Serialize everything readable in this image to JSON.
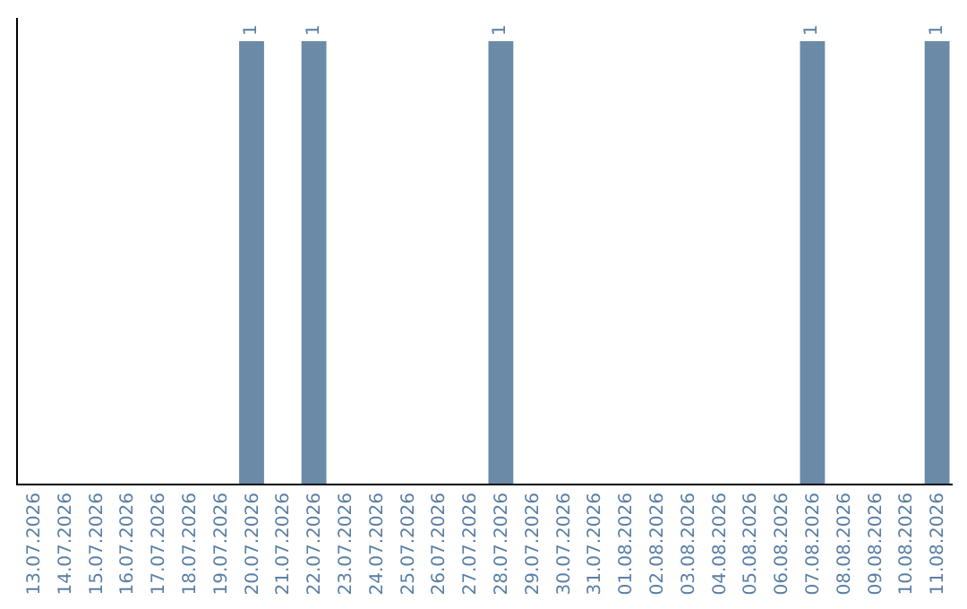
{
  "chart_data": {
    "type": "bar",
    "categories": [
      "13.07.2026",
      "14.07.2026",
      "15.07.2026",
      "16.07.2026",
      "17.07.2026",
      "18.07.2026",
      "19.07.2026",
      "20.07.2026",
      "21.07.2026",
      "22.07.2026",
      "23.07.2026",
      "24.07.2026",
      "25.07.2026",
      "26.07.2026",
      "27.07.2026",
      "28.07.2026",
      "29.07.2026",
      "30.07.2026",
      "31.07.2026",
      "01.08.2026",
      "02.08.2026",
      "03.08.2026",
      "04.08.2026",
      "05.08.2026",
      "06.08.2026",
      "07.08.2026",
      "08.08.2026",
      "09.08.2026",
      "10.08.2026",
      "11.08.2026"
    ],
    "values": [
      null,
      null,
      null,
      null,
      null,
      null,
      null,
      1,
      null,
      1,
      null,
      null,
      null,
      null,
      null,
      1,
      null,
      null,
      null,
      null,
      null,
      null,
      null,
      null,
      null,
      1,
      null,
      null,
      null,
      1
    ],
    "color": "#6a8aa8",
    "data_labels": true,
    "tick_labels": "x"
  }
}
